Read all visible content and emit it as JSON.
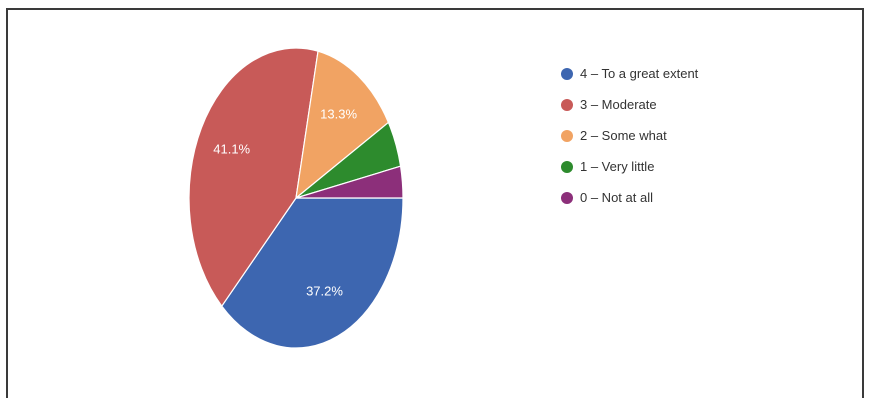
{
  "chart_data": {
    "type": "pie",
    "title": "",
    "slices": [
      {
        "label": "4 – To a great extent",
        "value": 37.2,
        "display": "37.2%",
        "color": "#3d66b0"
      },
      {
        "label": "3 – Moderate",
        "value": 41.1,
        "display": "41.1%",
        "color": "#c85a58"
      },
      {
        "label": "2 – Some what",
        "value": 13.3,
        "display": "13.3%",
        "color": "#f1a363"
      },
      {
        "label": "1 – Very little",
        "value": 5.0,
        "display": "",
        "color": "#2d8b2d"
      },
      {
        "label": "0 – Not at all",
        "value": 3.4,
        "display": "",
        "color": "#8c2f7a"
      }
    ],
    "legend_position": "right"
  }
}
